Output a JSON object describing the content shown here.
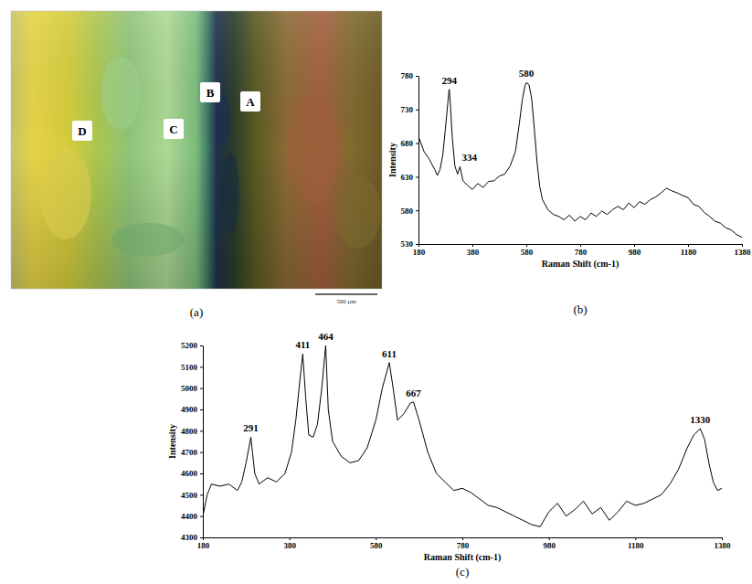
{
  "micrograph": {
    "labels": [
      "A",
      "B",
      "C",
      "D"
    ],
    "scale_bar": "500 μm",
    "caption": "(a)"
  },
  "chart_data": [
    {
      "type": "line",
      "caption": "(b)",
      "xlabel": "Raman Shift (cm-1)",
      "ylabel": "Intensity",
      "color": "#000000",
      "xlim": [
        180,
        1380
      ],
      "xticks": [
        180,
        380,
        580,
        780,
        980,
        1180,
        1380
      ],
      "ylim": [
        530,
        780
      ],
      "yticks": [
        530,
        580,
        630,
        680,
        730,
        780
      ],
      "x": [
        180,
        200,
        220,
        240,
        250,
        260,
        270,
        280,
        290,
        294,
        298,
        305,
        315,
        325,
        334,
        345,
        360,
        380,
        400,
        420,
        440,
        460,
        480,
        500,
        520,
        540,
        555,
        565,
        575,
        580,
        590,
        600,
        610,
        620,
        630,
        640,
        660,
        680,
        700,
        720,
        740,
        760,
        780,
        800,
        820,
        840,
        860,
        880,
        900,
        920,
        940,
        960,
        980,
        1000,
        1020,
        1040,
        1060,
        1080,
        1100,
        1120,
        1140,
        1160,
        1180,
        1200,
        1220,
        1240,
        1260,
        1280,
        1300,
        1320,
        1340,
        1360,
        1380
      ],
      "values": [
        690,
        668,
        656,
        641,
        632,
        641,
        662,
        702,
        745,
        760,
        740,
        690,
        646,
        634,
        645,
        624,
        618,
        611,
        620,
        614,
        623,
        624,
        631,
        634,
        646,
        668,
        712,
        744,
        765,
        770,
        767,
        746,
        700,
        651,
        615,
        596,
        581,
        574,
        571,
        566,
        573,
        564,
        571,
        566,
        576,
        571,
        579,
        574,
        581,
        586,
        581,
        591,
        584,
        593,
        589,
        596,
        600,
        606,
        613,
        609,
        606,
        602,
        599,
        589,
        586,
        577,
        571,
        564,
        561,
        554,
        551,
        544,
        540
      ],
      "annotations": [
        {
          "x": 294,
          "text": "294"
        },
        {
          "x": 334,
          "text": "334"
        },
        {
          "x": 580,
          "text": "580"
        }
      ]
    },
    {
      "type": "line",
      "caption": "(c)",
      "xlabel": "Raman Shift (cm-1)",
      "ylabel": "Intensity",
      "color": "#000000",
      "xlim": [
        180,
        1380
      ],
      "xticks": [
        180,
        380,
        580,
        780,
        980,
        1180,
        1380
      ],
      "ylim": [
        4300,
        5200
      ],
      "yticks": [
        4300,
        4400,
        4500,
        4600,
        4700,
        4800,
        4900,
        5000,
        5100,
        5200
      ],
      "x": [
        180,
        190,
        200,
        220,
        240,
        260,
        270,
        280,
        291,
        300,
        310,
        330,
        350,
        370,
        385,
        395,
        405,
        411,
        418,
        425,
        435,
        445,
        455,
        464,
        470,
        480,
        500,
        520,
        540,
        560,
        580,
        595,
        611,
        620,
        630,
        645,
        660,
        667,
        680,
        700,
        720,
        740,
        760,
        780,
        800,
        820,
        840,
        860,
        880,
        900,
        920,
        940,
        960,
        980,
        1000,
        1020,
        1040,
        1060,
        1080,
        1100,
        1120,
        1140,
        1160,
        1180,
        1200,
        1220,
        1240,
        1260,
        1280,
        1300,
        1315,
        1330,
        1340,
        1350,
        1360,
        1370,
        1380
      ],
      "values": [
        4400,
        4500,
        4550,
        4540,
        4550,
        4520,
        4560,
        4650,
        4770,
        4600,
        4550,
        4580,
        4560,
        4600,
        4700,
        4850,
        5050,
        5160,
        4950,
        4780,
        4770,
        4830,
        5000,
        5200,
        4900,
        4750,
        4680,
        4650,
        4660,
        4720,
        4850,
        5000,
        5120,
        5000,
        4850,
        4880,
        4930,
        4935,
        4850,
        4700,
        4600,
        4560,
        4520,
        4530,
        4510,
        4480,
        4450,
        4440,
        4420,
        4400,
        4380,
        4360,
        4350,
        4420,
        4460,
        4400,
        4430,
        4470,
        4410,
        4440,
        4380,
        4420,
        4470,
        4450,
        4460,
        4480,
        4500,
        4550,
        4620,
        4720,
        4780,
        4810,
        4760,
        4650,
        4560,
        4520,
        4530
      ],
      "annotations": [
        {
          "x": 291,
          "text": "291"
        },
        {
          "x": 411,
          "text": "411"
        },
        {
          "x": 464,
          "text": "464"
        },
        {
          "x": 611,
          "text": "611"
        },
        {
          "x": 667,
          "text": "667"
        },
        {
          "x": 1330,
          "text": "1330"
        }
      ]
    }
  ]
}
